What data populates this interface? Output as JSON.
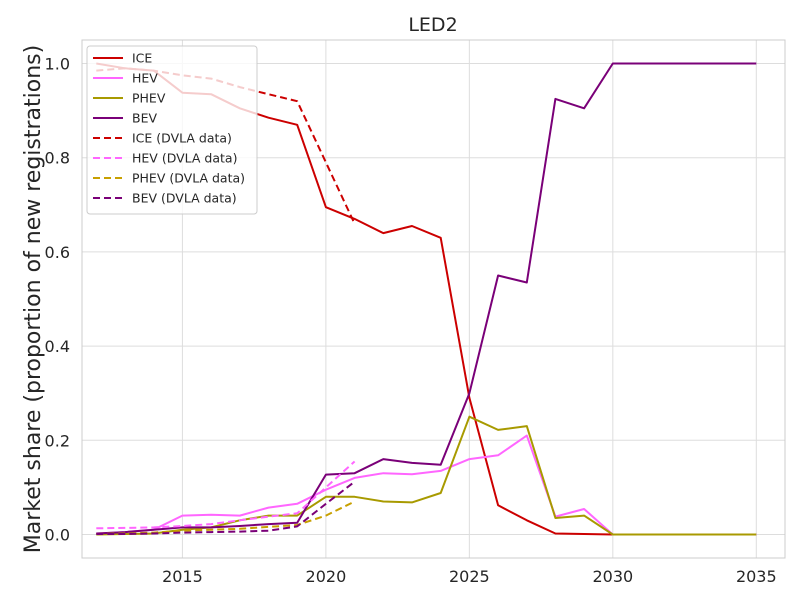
{
  "chart_data": {
    "type": "line",
    "title": "LED2",
    "xlabel": "",
    "ylabel": "Market share (proportion of new registrations)",
    "xlim": [
      2011.5,
      2036.0
    ],
    "ylim": [
      -0.05,
      1.05
    ],
    "xticks": [
      2015,
      2020,
      2025,
      2030,
      2035
    ],
    "xtick_labels": [
      "2015",
      "2020",
      "2025",
      "2030",
      "2035"
    ],
    "yticks": [
      0.0,
      0.2,
      0.4,
      0.6,
      0.8,
      1.0
    ],
    "ytick_labels": [
      "0.0",
      "0.2",
      "0.4",
      "0.6",
      "0.8",
      "1.0"
    ],
    "grid": true,
    "legend_position": "top-left",
    "series": [
      {
        "name": "ICE",
        "color": "#cc0000",
        "dash": "solid",
        "x": [
          2012,
          2013,
          2014,
          2015,
          2016,
          2017,
          2018,
          2019,
          2020,
          2021,
          2022,
          2023,
          2024,
          2025,
          2026,
          2027,
          2028,
          2029,
          2030,
          2031,
          2032,
          2033,
          2034,
          2035
        ],
        "y": [
          1.0,
          0.99,
          0.985,
          0.938,
          0.935,
          0.905,
          0.885,
          0.87,
          0.695,
          0.67,
          0.64,
          0.655,
          0.63,
          0.29,
          0.062,
          0.03,
          0.002,
          0.001,
          0.0,
          0.0,
          0.0,
          0.0,
          0.0,
          0.0
        ]
      },
      {
        "name": "HEV",
        "color": "#ff66ff",
        "dash": "solid",
        "x": [
          2012,
          2013,
          2014,
          2015,
          2016,
          2017,
          2018,
          2019,
          2020,
          2021,
          2022,
          2023,
          2024,
          2025,
          2026,
          2027,
          2028,
          2029,
          2030,
          2031,
          2032,
          2033,
          2034,
          2035
        ],
        "y": [
          0.002,
          0.005,
          0.01,
          0.04,
          0.042,
          0.04,
          0.057,
          0.065,
          0.095,
          0.12,
          0.13,
          0.128,
          0.135,
          0.16,
          0.168,
          0.21,
          0.038,
          0.054,
          0.0,
          0.0,
          0.0,
          0.0,
          0.0,
          0.0
        ]
      },
      {
        "name": "PHEV",
        "color": "#a89a00",
        "dash": "solid",
        "x": [
          2012,
          2013,
          2014,
          2015,
          2016,
          2017,
          2018,
          2019,
          2020,
          2021,
          2022,
          2023,
          2024,
          2025,
          2026,
          2027,
          2028,
          2029,
          2030,
          2031,
          2032,
          2033,
          2034,
          2035
        ],
        "y": [
          0.0,
          0.001,
          0.002,
          0.01,
          0.015,
          0.03,
          0.04,
          0.04,
          0.08,
          0.08,
          0.07,
          0.068,
          0.088,
          0.25,
          0.222,
          0.23,
          0.035,
          0.04,
          0.0,
          0.0,
          0.0,
          0.0,
          0.0,
          0.0
        ]
      },
      {
        "name": "BEV",
        "color": "#7a0078",
        "dash": "solid",
        "x": [
          2012,
          2013,
          2014,
          2015,
          2016,
          2017,
          2018,
          2019,
          2020,
          2021,
          2022,
          2023,
          2024,
          2025,
          2026,
          2027,
          2028,
          2029,
          2030,
          2031,
          2032,
          2033,
          2034,
          2035
        ],
        "y": [
          0.002,
          0.005,
          0.01,
          0.015,
          0.015,
          0.018,
          0.022,
          0.025,
          0.127,
          0.13,
          0.16,
          0.152,
          0.148,
          0.3,
          0.55,
          0.535,
          0.925,
          0.905,
          1.0,
          1.0,
          1.0,
          1.0,
          1.0,
          1.0
        ]
      },
      {
        "name": "ICE (DVLA data)",
        "color": "#cc0000",
        "dash": "dashed",
        "x": [
          2012,
          2013,
          2014,
          2015,
          2016,
          2017,
          2018,
          2019,
          2020,
          2021
        ],
        "y": [
          0.985,
          0.99,
          0.985,
          0.975,
          0.968,
          0.95,
          0.935,
          0.92,
          0.79,
          0.66
        ]
      },
      {
        "name": "HEV (DVLA data)",
        "color": "#ff66ff",
        "dash": "dashed",
        "x": [
          2012,
          2013,
          2014,
          2015,
          2016,
          2017,
          2018,
          2019,
          2020,
          2021
        ],
        "y": [
          0.013,
          0.014,
          0.015,
          0.018,
          0.022,
          0.03,
          0.038,
          0.045,
          0.1,
          0.155
        ]
      },
      {
        "name": "PHEV (DVLA data)",
        "color": "#c8a000",
        "dash": "dashed",
        "x": [
          2012,
          2013,
          2014,
          2015,
          2016,
          2017,
          2018,
          2019,
          2020,
          2021
        ],
        "y": [
          0.001,
          0.002,
          0.004,
          0.008,
          0.01,
          0.012,
          0.016,
          0.02,
          0.04,
          0.07
        ]
      },
      {
        "name": "BEV (DVLA data)",
        "color": "#7a0078",
        "dash": "dashed",
        "x": [
          2012,
          2013,
          2014,
          2015,
          2016,
          2017,
          2018,
          2019,
          2020,
          2021
        ],
        "y": [
          0.001,
          0.001,
          0.002,
          0.004,
          0.005,
          0.006,
          0.008,
          0.017,
          0.065,
          0.112
        ]
      }
    ]
  }
}
